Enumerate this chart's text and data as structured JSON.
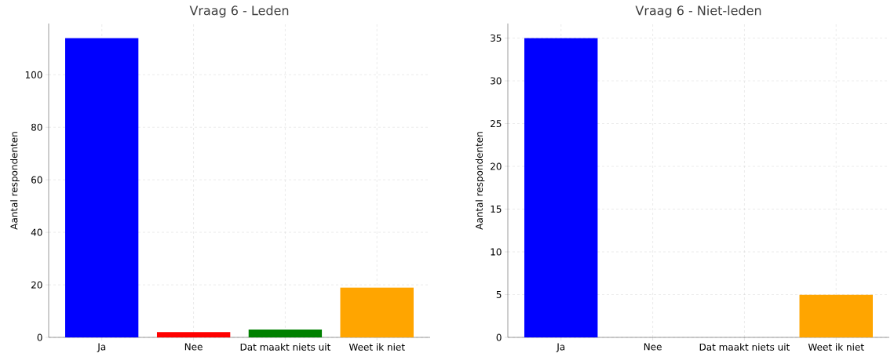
{
  "chart_data": [
    {
      "type": "bar",
      "title": "Vraag 6 - Leden",
      "ylabel": "Aantal respondenten",
      "categories": [
        "Ja",
        "Nee",
        "Dat maakt niets uit",
        "Weet ik niet"
      ],
      "values": [
        114,
        2,
        3,
        19
      ],
      "colors": [
        "#0000ff",
        "#ff0000",
        "#008000",
        "#ffa500"
      ],
      "ylim": [
        0,
        119.5
      ],
      "yticks": [
        0,
        20,
        40,
        60,
        80,
        100
      ],
      "grid": true
    },
    {
      "type": "bar",
      "title": "Vraag 6 - Niet-leden",
      "ylabel": "Aantal respondenten",
      "categories": [
        "Ja",
        "Nee",
        "Dat maakt niets uit",
        "Weet ik niet"
      ],
      "values": [
        35,
        0,
        0,
        5
      ],
      "colors": [
        "#0000ff",
        "#ff0000",
        "#008000",
        "#ffa500"
      ],
      "ylim": [
        0,
        36.7
      ],
      "yticks": [
        0,
        5,
        10,
        15,
        20,
        25,
        30,
        35
      ],
      "grid": true
    }
  ]
}
